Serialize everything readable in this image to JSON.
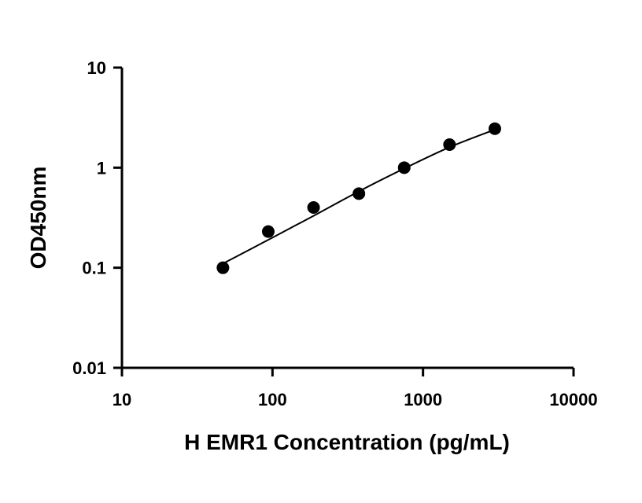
{
  "chart_data": {
    "type": "scatter",
    "xlabel": "H EMR1 Concentration (pg/mL)",
    "ylabel": "OD450nm",
    "xscale": "log",
    "yscale": "log",
    "xlim": [
      10,
      10000
    ],
    "ylim": [
      0.01,
      10
    ],
    "xticks": [
      "10",
      "100",
      "1000",
      "10000"
    ],
    "yticks": [
      "0.01",
      "0.1",
      "1",
      "10"
    ],
    "grid": false,
    "legend": "none",
    "series": [
      {
        "points": [
          {
            "x": 46.875,
            "y": 0.1
          },
          {
            "x": 93.75,
            "y": 0.23
          },
          {
            "x": 187.5,
            "y": 0.4
          },
          {
            "x": 375,
            "y": 0.55
          },
          {
            "x": 750,
            "y": 1.0
          },
          {
            "x": 1500,
            "y": 1.7
          },
          {
            "x": 3000,
            "y": 2.45
          }
        ],
        "fit": [
          {
            "x": 46.875,
            "y": 0.11
          },
          {
            "x": 93.75,
            "y": 0.19
          },
          {
            "x": 187.5,
            "y": 0.33
          },
          {
            "x": 375,
            "y": 0.58
          },
          {
            "x": 750,
            "y": 0.98
          },
          {
            "x": 1500,
            "y": 1.6
          },
          {
            "x": 3000,
            "y": 2.4
          }
        ]
      }
    ],
    "colors": {
      "marker": "#000000",
      "line": "#000000",
      "axis": "#000000"
    }
  }
}
